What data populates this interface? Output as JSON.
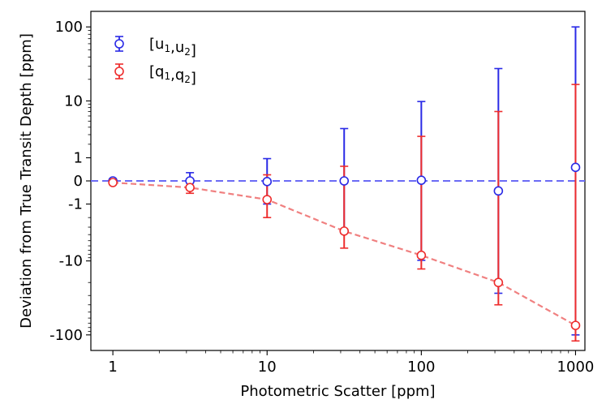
{
  "chart_data": {
    "type": "scatter",
    "title": "",
    "xlabel": "Photometric Scatter [ppm]",
    "ylabel": "Deviation from True Transit Depth [ppm]",
    "xscale": "log",
    "yscale": "symlog",
    "xlim": [
      0.72,
      1150
    ],
    "ylim": [
      -160,
      160
    ],
    "xticks": [
      {
        "value": 1,
        "label": "1"
      },
      {
        "value": 10,
        "label": "10"
      },
      {
        "value": 100,
        "label": "100"
      },
      {
        "value": 1000,
        "label": "1000"
      }
    ],
    "yticks": [
      {
        "value": 100,
        "label": "100"
      },
      {
        "value": 10,
        "label": "10"
      },
      {
        "value": 1,
        "label": "1"
      },
      {
        "value": 0,
        "label": "0"
      },
      {
        "value": -1,
        "label": "-1"
      },
      {
        "value": -10,
        "label": "-10"
      },
      {
        "value": -100,
        "label": "-100"
      }
    ],
    "reference_line": {
      "y": 0,
      "color": "#6b6bf5",
      "style": "dashed"
    },
    "legend_position": "top-left",
    "series": [
      {
        "name": "[u1,u2]",
        "color": "#2a2ae6",
        "marker": "open-circle",
        "connect": false,
        "x": [
          1,
          3.16,
          10,
          31.6,
          100,
          316,
          1000
        ],
        "y": [
          0.0,
          0.0,
          -0.02,
          0.0,
          0.02,
          -0.35,
          0.5
        ],
        "yerr_low": [
          -0.03,
          -0.28,
          -1.0,
          -3.8,
          -9.8,
          -28,
          -100
        ],
        "yerr_high": [
          0.03,
          0.28,
          0.95,
          3.8,
          9.8,
          28,
          100
        ]
      },
      {
        "name": "[q1,q2]",
        "color": "#ee2d2d",
        "marker": "open-circle",
        "connect": true,
        "line_color": "#f08080",
        "x": [
          1,
          3.16,
          10,
          31.6,
          100,
          316,
          1000
        ],
        "y": [
          -0.05,
          -0.22,
          -0.75,
          -3.5,
          -8.3,
          -20,
          -75
        ],
        "yerr_low": [
          -0.1,
          -0.45,
          -2.0,
          -6.5,
          -13,
          -40,
          -120
        ],
        "yerr_high": [
          0.0,
          -0.05,
          0.2,
          0.55,
          2.8,
          7,
          17
        ]
      }
    ]
  }
}
